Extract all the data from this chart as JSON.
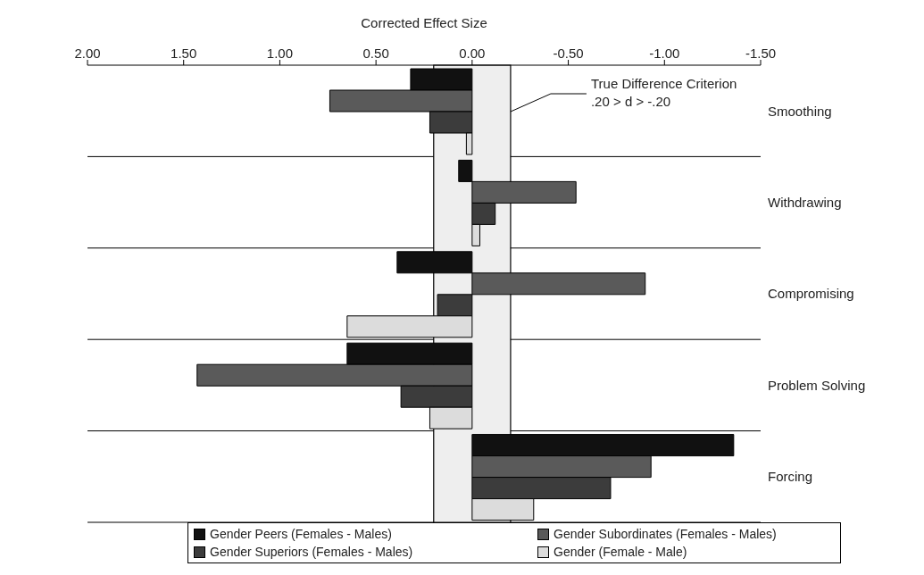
{
  "chart_data": {
    "type": "bar",
    "orientation": "horizontal",
    "xlabel": "Corrected Effect Size",
    "categories": [
      "Smoothing",
      "Withdrawing",
      "Compromising",
      "Problem Solving",
      "Forcing"
    ],
    "series": [
      {
        "name": "Gender Peers (Females - Males)",
        "color": "#111111",
        "values": [
          0.32,
          0.07,
          0.39,
          0.65,
          -1.36
        ]
      },
      {
        "name": "Gender Subordinates (Females - Males)",
        "color": "#5a5a5a",
        "values": [
          0.74,
          -0.54,
          -0.9,
          1.43,
          -0.93
        ]
      },
      {
        "name": "Gender Superiors (Females - Males)",
        "color": "#3c3c3c",
        "values": [
          0.22,
          -0.12,
          0.18,
          0.37,
          -0.72
        ]
      },
      {
        "name": "Gender (Female - Male)",
        "color": "#dcdcdc",
        "values": [
          0.03,
          -0.04,
          0.65,
          0.22,
          -0.32
        ]
      }
    ],
    "xlim": [
      2.0,
      -1.5
    ],
    "xticks": [
      {
        "value": 2,
        "label": "2.00"
      },
      {
        "value": 1.5,
        "label": "1.50"
      },
      {
        "value": 1,
        "label": "1.00"
      },
      {
        "value": 0.5,
        "label": "0.50"
      },
      {
        "value": 0,
        "label": "0.00"
      },
      {
        "value": -0.5,
        "label": "-0.50"
      },
      {
        "value": -1,
        "label": "-1.00"
      },
      {
        "value": -1.5,
        "label": "-1.50"
      }
    ],
    "bands": [
      {
        "axis": "x",
        "from": 0.2,
        "to": -0.2,
        "label": "True Difference Criterion\n.20 > d > -.20",
        "color": "#eeeeee"
      }
    ],
    "grid": "y",
    "legend": "bottom"
  }
}
